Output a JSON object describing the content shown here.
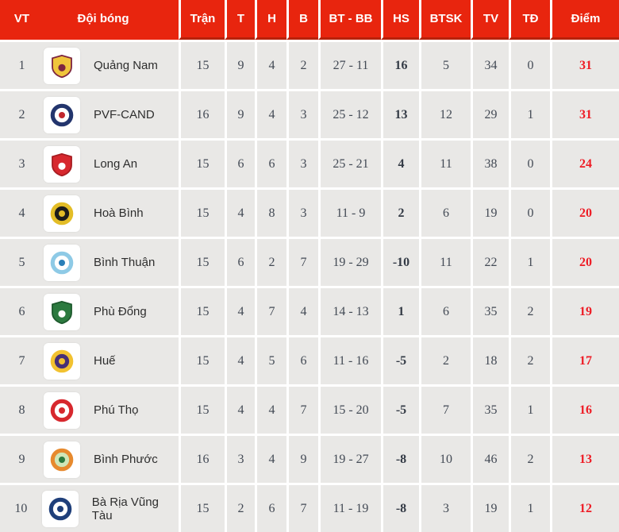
{
  "table": {
    "columns": [
      "VT",
      "Đội bóng",
      "Trận",
      "T",
      "H",
      "B",
      "BT - BB",
      "HS",
      "BTSK",
      "TV",
      "TĐ",
      "Điểm"
    ],
    "rows": [
      {
        "rank": "1",
        "team": "Quảng Nam",
        "logo": {
          "shape": "shield",
          "colors": [
            "#f0c53c",
            "#7e2640",
            "#7e2640"
          ]
        },
        "tran": "15",
        "t": "9",
        "h": "4",
        "b": "2",
        "btbb": "27 - 11",
        "hs": "16",
        "btsk": "5",
        "tv": "34",
        "td": "0",
        "diem": "31"
      },
      {
        "rank": "2",
        "team": "PVF-CAND",
        "logo": {
          "shape": "circle",
          "colors": [
            "#23356d",
            "#ffffff",
            "#c1272d"
          ]
        },
        "tran": "16",
        "t": "9",
        "h": "4",
        "b": "3",
        "btbb": "25 - 12",
        "hs": "13",
        "btsk": "12",
        "tv": "29",
        "td": "1",
        "diem": "31"
      },
      {
        "rank": "3",
        "team": "Long An",
        "logo": {
          "shape": "shield",
          "colors": [
            "#d7282e",
            "#a81d22",
            "#ffffff"
          ]
        },
        "tran": "15",
        "t": "6",
        "h": "6",
        "b": "3",
        "btbb": "25 - 21",
        "hs": "4",
        "btsk": "11",
        "tv": "38",
        "td": "0",
        "diem": "24"
      },
      {
        "rank": "4",
        "team": "Hoà Bình",
        "logo": {
          "shape": "circle",
          "colors": [
            "#e3bd27",
            "#1d1d1b",
            "#e3bd27"
          ]
        },
        "tran": "15",
        "t": "4",
        "h": "8",
        "b": "3",
        "btbb": "11 - 9",
        "hs": "2",
        "btsk": "6",
        "tv": "19",
        "td": "0",
        "diem": "20"
      },
      {
        "rank": "5",
        "team": "Bình Thuận",
        "logo": {
          "shape": "circle",
          "colors": [
            "#8ecae6",
            "#ffffff",
            "#2a7fb8"
          ]
        },
        "tran": "15",
        "t": "6",
        "h": "2",
        "b": "7",
        "btbb": "19 - 29",
        "hs": "-10",
        "btsk": "11",
        "tv": "22",
        "td": "1",
        "diem": "20"
      },
      {
        "rank": "6",
        "team": "Phù Đổng",
        "logo": {
          "shape": "shield",
          "colors": [
            "#2c7a3f",
            "#1e5a2d",
            "#ffffff"
          ]
        },
        "tran": "15",
        "t": "4",
        "h": "7",
        "b": "4",
        "btbb": "14 - 13",
        "hs": "1",
        "btsk": "6",
        "tv": "35",
        "td": "2",
        "diem": "19"
      },
      {
        "rank": "7",
        "team": "Huế",
        "logo": {
          "shape": "circle",
          "colors": [
            "#f2c230",
            "#463077",
            "#f2c230"
          ]
        },
        "tran": "15",
        "t": "4",
        "h": "5",
        "b": "6",
        "btbb": "11 - 16",
        "hs": "-5",
        "btsk": "2",
        "tv": "18",
        "td": "2",
        "diem": "17"
      },
      {
        "rank": "8",
        "team": "Phú Thọ",
        "logo": {
          "shape": "circle",
          "colors": [
            "#d7282e",
            "#ffffff",
            "#d7282e"
          ]
        },
        "tran": "15",
        "t": "4",
        "h": "4",
        "b": "7",
        "btbb": "15 - 20",
        "hs": "-5",
        "btsk": "7",
        "tv": "35",
        "td": "1",
        "diem": "16"
      },
      {
        "rank": "9",
        "team": "Bình Phước",
        "logo": {
          "shape": "circle",
          "colors": [
            "#e78a2e",
            "#cfe6b8",
            "#2c7a3f"
          ]
        },
        "tran": "16",
        "t": "3",
        "h": "4",
        "b": "9",
        "btbb": "19 - 27",
        "hs": "-8",
        "btsk": "10",
        "tv": "46",
        "td": "2",
        "diem": "13"
      },
      {
        "rank": "10",
        "team": "Bà Rịa Vũng Tàu",
        "logo": {
          "shape": "circle",
          "colors": [
            "#1f3f7a",
            "#ffffff",
            "#1f3f7a"
          ]
        },
        "tran": "15",
        "t": "2",
        "h": "6",
        "b": "7",
        "btbb": "11 - 19",
        "hs": "-8",
        "btsk": "3",
        "tv": "19",
        "td": "1",
        "diem": "12"
      }
    ]
  },
  "colors": {
    "header_bg": "#e8250e",
    "header_border": "#b7220b",
    "row_bg": "#e9e8e6",
    "separator": "#ffffff",
    "points_text": "#ee1c25",
    "number_text": "#434a55",
    "team_text": "#2e2e2e"
  }
}
